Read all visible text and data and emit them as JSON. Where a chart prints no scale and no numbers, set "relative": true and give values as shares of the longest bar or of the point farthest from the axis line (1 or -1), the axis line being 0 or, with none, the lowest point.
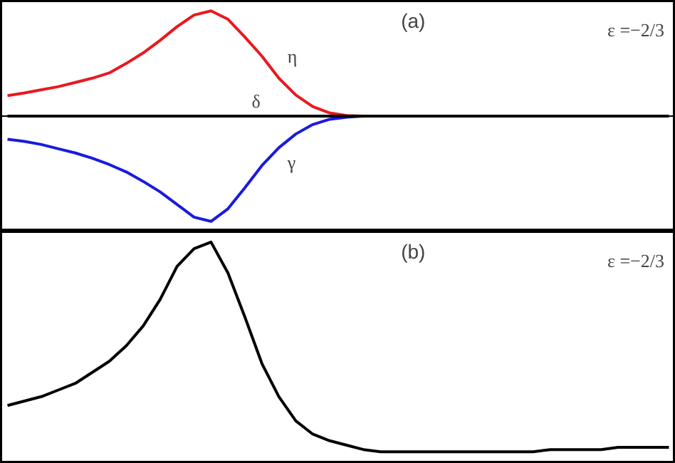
{
  "chart_data": [
    {
      "type": "line",
      "relative": true,
      "categories": [
        null,
        null,
        null,
        null,
        null,
        null,
        null,
        null,
        null,
        null,
        null,
        null,
        null,
        null,
        null,
        null,
        null,
        null,
        null,
        null,
        null,
        null,
        null,
        null,
        null,
        null,
        null,
        null,
        null,
        null,
        null,
        null,
        null,
        null,
        null,
        null,
        null,
        null,
        null,
        null
      ],
      "annotations": [
        "(a)",
        "ε =−2/3"
      ],
      "series": [
        {
          "name": "η",
          "color": "#e8191f",
          "values": [
            0.195,
            0.22,
            0.25,
            0.28,
            0.32,
            0.36,
            0.41,
            0.5,
            0.6,
            0.72,
            0.85,
            0.96,
            1.0,
            0.92,
            0.75,
            0.57,
            0.36,
            0.2,
            0.09,
            0.03,
            0.005,
            0,
            null,
            null,
            null,
            null,
            null,
            null,
            null,
            null,
            null,
            null,
            null,
            null,
            null,
            null,
            null,
            null,
            null,
            null
          ]
        },
        {
          "name": "γ",
          "color": "#1a1adf",
          "values": [
            -0.22,
            -0.24,
            -0.27,
            -0.31,
            -0.35,
            -0.4,
            -0.46,
            -0.53,
            -0.62,
            -0.72,
            -0.84,
            -0.96,
            -1.0,
            -0.88,
            -0.68,
            -0.47,
            -0.3,
            -0.17,
            -0.08,
            -0.03,
            -0.01,
            0,
            null,
            null,
            null,
            null,
            null,
            null,
            null,
            null,
            null,
            null,
            null,
            null,
            null,
            null,
            null,
            null,
            null,
            null
          ]
        },
        {
          "name": "δ",
          "color": "#000000",
          "values": [
            0,
            0,
            0,
            0,
            0,
            0,
            0,
            0,
            0,
            0,
            0,
            0,
            0,
            0,
            0,
            0,
            0,
            0,
            0,
            0,
            0,
            0,
            0,
            0,
            0,
            0,
            0,
            0,
            0,
            0,
            0,
            0,
            0,
            0,
            0,
            0,
            0,
            0,
            0,
            0
          ]
        }
      ]
    },
    {
      "type": "line",
      "relative": true,
      "categories": [
        null,
        null,
        null,
        null,
        null,
        null,
        null,
        null,
        null,
        null,
        null,
        null,
        null,
        null,
        null,
        null,
        null,
        null,
        null,
        null,
        null,
        null,
        null,
        null,
        null,
        null,
        null,
        null,
        null,
        null,
        null,
        null,
        null,
        null,
        null,
        null,
        null,
        null,
        null,
        null
      ],
      "annotations": [
        "(b)",
        "ε =−2/3"
      ],
      "series": [
        {
          "color": "#000000",
          "values": [
            0.26,
            0.28,
            0.3,
            0.33,
            0.36,
            0.41,
            0.46,
            0.53,
            0.62,
            0.74,
            0.89,
            0.97,
            1.0,
            0.86,
            0.66,
            0.45,
            0.3,
            0.19,
            0.13,
            0.1,
            0.08,
            0.06,
            0.05,
            0.05,
            0.05,
            0.05,
            0.05,
            0.05,
            0.05,
            0.05,
            0.05,
            0.05,
            0.06,
            0.06,
            0.06,
            0.06,
            0.07,
            0.07,
            0.07,
            0.07
          ]
        }
      ]
    }
  ]
}
